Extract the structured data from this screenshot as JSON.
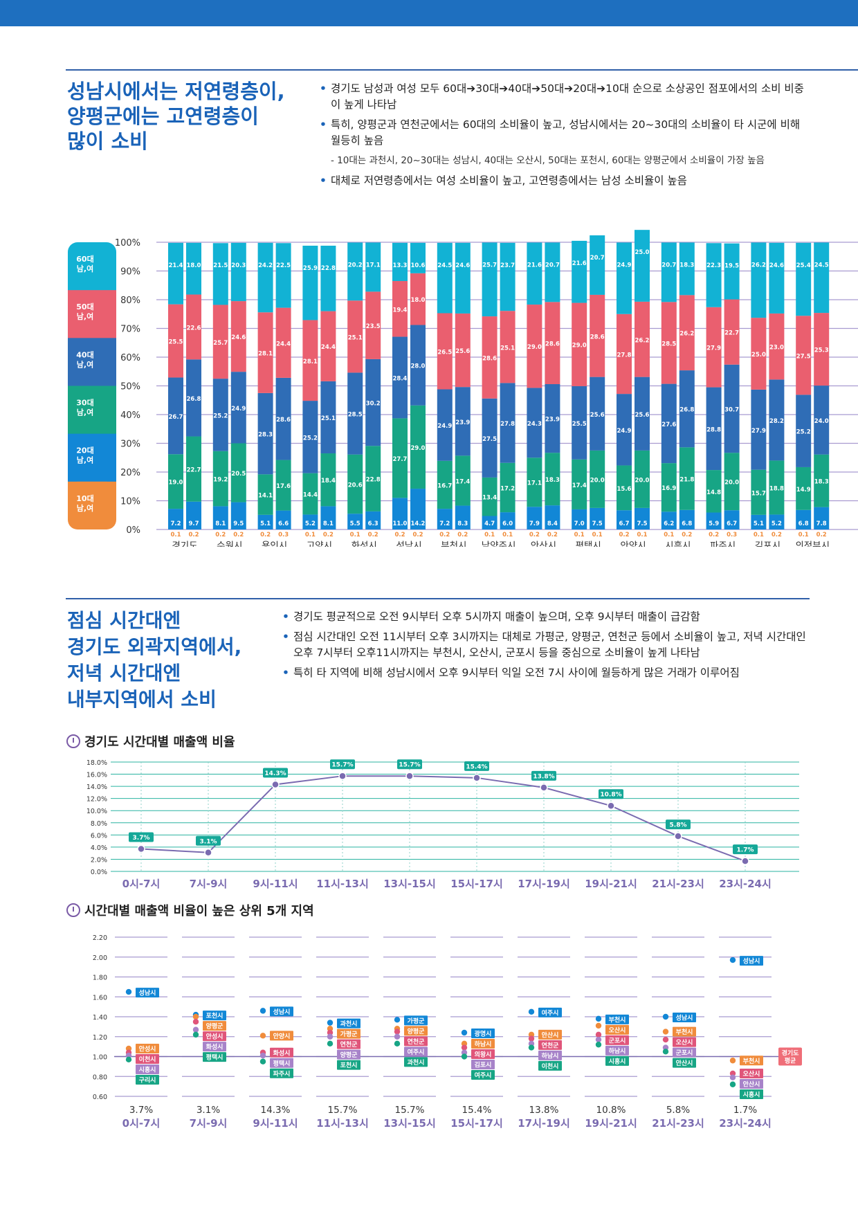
{
  "section1": {
    "heading": [
      "성남시에서는 저연령층이,",
      "양평군에는 고연령층이",
      "많이 소비"
    ],
    "bullets": [
      "경기도 남성과 여성 모두 60대➔30대➔40대➔50대➔20대➔10대 순으로 소상공인 점포에서의 소비 비중이 높게 나타남",
      "특히, 양평군과 연천군에서는 60대의 소비율이 높고, 성남시에서는 20~30대의 소비율이 타 시군에 비해 월등히 높음"
    ],
    "sub_bullet": "- 10대는 과천시, 20~30대는 성남시, 40대는 오산시, 50대는 포천시, 60대는 양평군에서 소비율이 가장 높음",
    "bullet3": "대체로 저연령층에서는 여성 소비율이 높고, 고연령층에서는 남성 소비율이 높음"
  },
  "section2": {
    "heading": [
      "점심 시간대엔",
      "경기도 외곽지역에서,",
      "저녁 시간대엔",
      "내부지역에서 소비"
    ],
    "bullets": [
      "경기도 평균적으로 오전 9시부터 오후 5시까지 매출이 높으며, 오후 9시부터 매출이 급감함",
      "점심 시간대인 오전 11시부터 오후 3시까지는 대체로 가평군, 양평군, 연천군 등에서 소비율이 높고, 저녁 시간대인 오후 7시부터 오후11시까지는 부천시, 오산시, 군포시 등을 중심으로 소비율이 높게 나타남",
      "특히 타 지역에 비해 성남시에서 오후 9시부터 익일 오전 7시 사이에 월등하게 많은 거래가 이루어짐"
    ]
  },
  "colors": {
    "c60": "#12b2d4",
    "c50": "#ea5f6f",
    "c40": "#2f6db6",
    "c30": "#17a585",
    "c20": "#1287d6",
    "c10": "#f08c3c",
    "line": "#7a6bb0",
    "grid": "#a89ad0",
    "label_bg": "#15a898",
    "brand": "#1e6fbf"
  },
  "chart_data": [
    {
      "type": "bar",
      "stacked": true,
      "title": "",
      "ylim": [
        0,
        100
      ],
      "yticks": [
        "0%",
        "10%",
        "20%",
        "30%",
        "40%",
        "50%",
        "60%",
        "70%",
        "80%",
        "90%",
        "100%"
      ],
      "legend": [
        "60대\n남,여",
        "50대\n남,여",
        "40대\n남,여",
        "30대\n남,여",
        "20대\n남,여",
        "10대\n남,여"
      ],
      "legend_placement": "left",
      "categories": [
        "경기도",
        "수원시",
        "용인시",
        "고양시",
        "화성시",
        "성남시",
        "부천시",
        "남양주시",
        "안산시",
        "평택시",
        "안양시",
        "시흥시",
        "파주시",
        "김포시",
        "의정부시"
      ],
      "bars": [
        {
          "a10": "0.1",
          "a20": 7.2,
          "a30": 19.0,
          "a40": 26.7,
          "a50": 25.5,
          "a60": 21.4
        },
        {
          "a10": "0.2",
          "a20": 9.7,
          "a30": 22.7,
          "a40": 26.8,
          "a50": 22.6,
          "a60": 18.0
        },
        {
          "a10": "0.2",
          "a20": 8.1,
          "a30": 19.2,
          "a40": 25.2,
          "a50": 25.7,
          "a60": 21.5
        },
        {
          "a10": "0.2",
          "a20": 9.5,
          "a30": 20.5,
          "a40": 24.9,
          "a50": 24.6,
          "a60": 20.3
        },
        {
          "a10": "0.2",
          "a20": 5.1,
          "a30": 14.1,
          "a40": 28.3,
          "a50": 28.1,
          "a60": 24.2
        },
        {
          "a10": "0.3",
          "a20": 6.6,
          "a30": 17.6,
          "a40": 28.6,
          "a50": 24.4,
          "a60": 22.5
        },
        {
          "a10": "0.1",
          "a20": 5.2,
          "a30": 14.4,
          "a40": 25.2,
          "a50": 28.1,
          "a60": 25.9
        },
        {
          "a10": "0.2",
          "a20": 8.1,
          "a30": 18.4,
          "a40": 25.1,
          "a50": 24.4,
          "a60": 22.8
        },
        {
          "a10": "0.1",
          "a20": 5.5,
          "a30": 20.6,
          "a40": 28.5,
          "a50": 25.1,
          "a60": 20.2
        },
        {
          "a10": "0.2",
          "a20": 6.3,
          "a30": 22.8,
          "a40": 30.2,
          "a50": 23.5,
          "a60": 17.1
        },
        {
          "a10": "0.2",
          "a20": 11.0,
          "a30": 27.7,
          "a40": 28.4,
          "a50": 19.4,
          "a60": 13.3
        },
        {
          "a10": "0.2",
          "a20": 14.2,
          "a30": 29.0,
          "a40": 28.0,
          "a50": 18.0,
          "a60": 10.6
        },
        {
          "a10": "0.2",
          "a20": 7.2,
          "a30": 16.7,
          "a40": 24.9,
          "a50": 26.5,
          "a60": 24.5
        },
        {
          "a10": "0.2",
          "a20": 8.3,
          "a30": 17.4,
          "a40": 23.9,
          "a50": 25.6,
          "a60": 24.6
        },
        {
          "a10": "0.1",
          "a20": 4.7,
          "a30": 13.4,
          "a40": 27.5,
          "a50": 28.6,
          "a60": 25.7
        },
        {
          "a10": "0.1",
          "a20": 6.0,
          "a30": 17.2,
          "a40": 27.8,
          "a50": 25.1,
          "a60": 23.7
        },
        {
          "a10": "0.2",
          "a20": 7.9,
          "a30": 17.1,
          "a40": 24.3,
          "a50": 29.0,
          "a60": 21.6
        },
        {
          "a10": "0.2",
          "a20": 8.4,
          "a30": 18.3,
          "a40": 23.9,
          "a50": 28.6,
          "a60": 20.7
        },
        {
          "a10": "0.1",
          "a20": 7.0,
          "a30": 17.4,
          "a40": 25.5,
          "a50": 29.0,
          "a60": 21.6
        },
        {
          "a10": "0.1",
          "a20": 7.5,
          "a30": 20.0,
          "a40": 25.6,
          "a50": 28.6,
          "a60": 20.7
        },
        {
          "a10": "0.2",
          "a20": 6.7,
          "a30": 15.6,
          "a40": 24.9,
          "a50": 27.8,
          "a60": 24.9
        },
        {
          "a10": "0.1",
          "a20": 7.5,
          "a30": 20.0,
          "a40": 25.6,
          "a50": 26.2,
          "a60": 25.0
        },
        {
          "a10": "0.1",
          "a20": 6.2,
          "a30": 16.9,
          "a40": 27.6,
          "a50": 28.5,
          "a60": 20.7
        },
        {
          "a10": "0.2",
          "a20": 6.8,
          "a30": 21.8,
          "a40": 26.8,
          "a50": 26.2,
          "a60": 18.3
        },
        {
          "a10": "0.2",
          "a20": 5.9,
          "a30": 14.8,
          "a40": 28.8,
          "a50": 27.9,
          "a60": 22.3
        },
        {
          "a10": "0.3",
          "a20": 6.7,
          "a30": 20.0,
          "a40": 30.7,
          "a50": 22.7,
          "a60": 19.5
        },
        {
          "a10": "0.1",
          "a20": 5.1,
          "a30": 15.7,
          "a40": 27.9,
          "a50": 25.0,
          "a60": 26.2
        },
        {
          "a10": "0.2",
          "a20": 5.2,
          "a30": 18.8,
          "a40": 28.2,
          "a50": 23.0,
          "a60": 24.6
        },
        {
          "a10": "0.1",
          "a20": 6.8,
          "a30": 14.9,
          "a40": 25.2,
          "a50": 27.5,
          "a60": 25.4
        },
        {
          "a10": "0.2",
          "a20": 7.8,
          "a30": 18.3,
          "a40": 24.0,
          "a50": 25.3,
          "a60": 24.5
        }
      ]
    },
    {
      "type": "line",
      "title": "경기도 시간대별 매출액 비율",
      "ylim": [
        0,
        18
      ],
      "yticks": [
        "0.0%",
        "2.0%",
        "4.0%",
        "6.0%",
        "8.0%",
        "10.0%",
        "12.0%",
        "14.0%",
        "16.0%",
        "18.0%"
      ],
      "categories": [
        "0시-7시",
        "7시-9시",
        "9시-11시",
        "11시-13시",
        "13시-15시",
        "15시-17시",
        "17시-19시",
        "19시-21시",
        "21시-23시",
        "23시-24시"
      ],
      "values": [
        3.7,
        3.1,
        14.3,
        15.7,
        15.7,
        15.4,
        13.8,
        10.8,
        5.8,
        1.7
      ],
      "labels": [
        "3.7%",
        "3.1%",
        "14.3%",
        "15.7%",
        "15.7%",
        "15.4%",
        "13.8%",
        "10.8%",
        "5.8%",
        "1.7%"
      ]
    },
    {
      "type": "scatter",
      "title": "시간대별 매출액 비율이 높은 상위 5개 지역",
      "ylim": [
        0.6,
        2.2
      ],
      "yticks": [
        "0.60",
        "0.80",
        "1.00",
        "1.20",
        "1.40",
        "1.60",
        "1.80",
        "2.00",
        "2.20"
      ],
      "reference": {
        "value": 1.0,
        "label": "경기도\n평균"
      },
      "categories": [
        "0시-7시",
        "7시-9시",
        "9시-11시",
        "11시-13시",
        "13시-15시",
        "15시-17시",
        "17시-19시",
        "19시-21시",
        "21시-23시",
        "23시-24시"
      ],
      "shares": [
        "3.7%",
        "3.1%",
        "14.3%",
        "15.7%",
        "15.7%",
        "15.4%",
        "13.8%",
        "10.8%",
        "5.8%",
        "1.7%"
      ],
      "groups": [
        {
          "points": [
            {
              "name": "성남시",
              "value": 1.65
            },
            {
              "name": "안성시",
              "value": 1.08
            },
            {
              "name": "이천시",
              "value": 1.04
            },
            {
              "name": "시흥시",
              "value": 1.01
            },
            {
              "name": "구리시",
              "value": 0.97
            }
          ]
        },
        {
          "points": [
            {
              "name": "포천시",
              "value": 1.42
            },
            {
              "name": "양평군",
              "value": 1.4
            },
            {
              "name": "안성시",
              "value": 1.35
            },
            {
              "name": "화성시",
              "value": 1.27
            },
            {
              "name": "평택시",
              "value": 1.22
            }
          ]
        },
        {
          "points": [
            {
              "name": "성남시",
              "value": 1.46
            },
            {
              "name": "안양시",
              "value": 1.21
            },
            {
              "name": "화성시",
              "value": 1.04
            },
            {
              "name": "평택시",
              "value": 1.01
            },
            {
              "name": "파주시",
              "value": 0.95
            }
          ]
        },
        {
          "points": [
            {
              "name": "과천시",
              "value": 1.34
            },
            {
              "name": "가평군",
              "value": 1.28
            },
            {
              "name": "연천군",
              "value": 1.24
            },
            {
              "name": "양평군",
              "value": 1.2
            },
            {
              "name": "포천시",
              "value": 1.13
            }
          ]
        },
        {
          "points": [
            {
              "name": "가평군",
              "value": 1.37
            },
            {
              "name": "양평군",
              "value": 1.28
            },
            {
              "name": "연천군",
              "value": 1.25
            },
            {
              "name": "여주시",
              "value": 1.2
            },
            {
              "name": "과천시",
              "value": 1.13
            }
          ]
        },
        {
          "points": [
            {
              "name": "광명시",
              "value": 1.24
            },
            {
              "name": "하남시",
              "value": 1.13
            },
            {
              "name": "의왕시",
              "value": 1.09
            },
            {
              "name": "김포시",
              "value": 1.04
            },
            {
              "name": "여주시",
              "value": 1.0
            }
          ]
        },
        {
          "points": [
            {
              "name": "여주시",
              "value": 1.45
            },
            {
              "name": "안산시",
              "value": 1.22
            },
            {
              "name": "연천군",
              "value": 1.18
            },
            {
              "name": "하남시",
              "value": 1.13
            },
            {
              "name": "이천시",
              "value": 1.09
            }
          ]
        },
        {
          "points": [
            {
              "name": "부천시",
              "value": 1.38
            },
            {
              "name": "오산시",
              "value": 1.31
            },
            {
              "name": "군포시",
              "value": 1.22
            },
            {
              "name": "하남시",
              "value": 1.17
            },
            {
              "name": "시흥시",
              "value": 1.12
            }
          ]
        },
        {
          "points": [
            {
              "name": "성남시",
              "value": 1.4
            },
            {
              "name": "부천시",
              "value": 1.25
            },
            {
              "name": "오산시",
              "value": 1.17
            },
            {
              "name": "군포시",
              "value": 1.09
            },
            {
              "name": "안산시",
              "value": 1.05
            }
          ]
        },
        {
          "points": [
            {
              "name": "성남시",
              "value": 1.97
            },
            {
              "name": "부천시",
              "value": 0.96
            },
            {
              "name": "오산시",
              "value": 0.83
            },
            {
              "name": "안산시",
              "value": 0.79
            },
            {
              "name": "시흥시",
              "value": 0.72
            }
          ]
        }
      ]
    }
  ]
}
